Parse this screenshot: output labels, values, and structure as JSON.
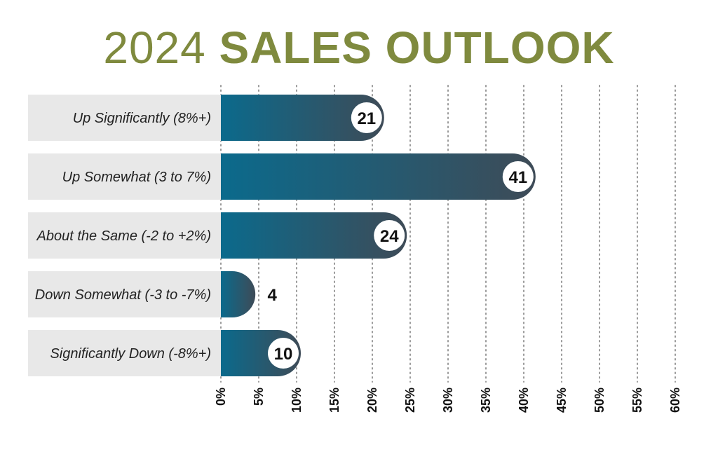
{
  "title": {
    "part1": "2024",
    "part2": "SALES OUTLOOK"
  },
  "colors": {
    "title": "#7f8a3e",
    "bar_start": "#0b6a8c",
    "bar_end": "#3e4b57",
    "label_bg": "#e8e8e8"
  },
  "chart_data": {
    "type": "bar",
    "orientation": "horizontal",
    "categories": [
      "Up Significantly (8%+)",
      "Up Somewhat (3 to 7%)",
      "About the Same (-2 to +2%)",
      "Down Somewhat (-3 to -7%)",
      "Significantly Down (-8%+)"
    ],
    "values": [
      21,
      41,
      24,
      4,
      10
    ],
    "value_labels": [
      "21",
      "41",
      "24",
      "4",
      "10"
    ],
    "xlim": [
      0,
      60
    ],
    "x_ticks": [
      "0%",
      "5%",
      "10%",
      "15%",
      "20%",
      "25%",
      "30%",
      "35%",
      "40%",
      "45%",
      "50%",
      "55%",
      "60%"
    ],
    "grid": "vertical dotted"
  }
}
